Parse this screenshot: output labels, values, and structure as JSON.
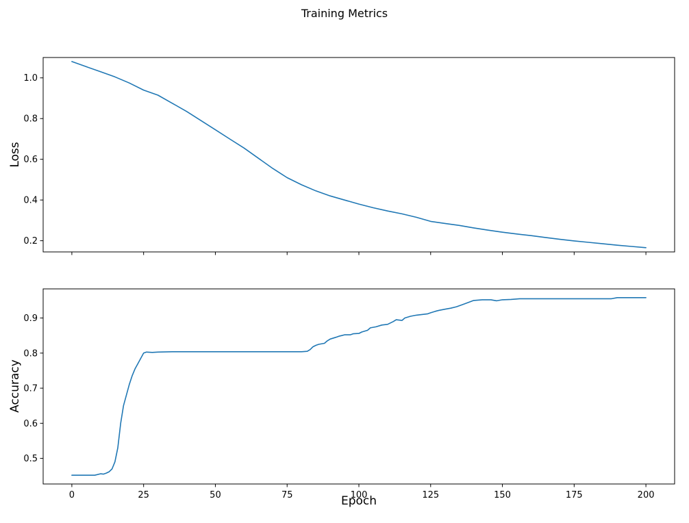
{
  "figure": {
    "title": "Training Metrics",
    "background_color": "#ffffff",
    "line_color": "#1f77b4"
  },
  "chart_data": [
    {
      "type": "line",
      "title": "",
      "xlabel": "",
      "ylabel": "Loss",
      "legend": "none",
      "grid": false,
      "color": "#1f77b4",
      "xlim": [
        -10,
        210
      ],
      "ylim": [
        0.145,
        1.1
      ],
      "xticks": [
        0,
        25,
        50,
        75,
        100,
        125,
        150,
        175,
        200
      ],
      "yticks": [
        0.2,
        0.4,
        0.6,
        0.8,
        1.0
      ],
      "show_x_tick_labels": false,
      "x": [
        0,
        5,
        10,
        15,
        20,
        25,
        30,
        35,
        40,
        45,
        50,
        55,
        60,
        65,
        70,
        75,
        80,
        85,
        90,
        95,
        100,
        105,
        110,
        115,
        120,
        125,
        130,
        135,
        140,
        145,
        150,
        155,
        160,
        165,
        170,
        175,
        180,
        185,
        190,
        195,
        200
      ],
      "y": [
        1.08,
        1.055,
        1.03,
        1.005,
        0.975,
        0.94,
        0.915,
        0.875,
        0.835,
        0.79,
        0.745,
        0.7,
        0.655,
        0.605,
        0.555,
        0.51,
        0.475,
        0.445,
        0.42,
        0.4,
        0.38,
        0.362,
        0.346,
        0.332,
        0.315,
        0.295,
        0.285,
        0.275,
        0.263,
        0.252,
        0.242,
        0.233,
        0.225,
        0.216,
        0.207,
        0.199,
        0.192,
        0.185,
        0.178,
        0.172,
        0.166
      ]
    },
    {
      "type": "line",
      "title": "",
      "xlabel": "Epoch",
      "ylabel": "Accuracy",
      "legend": "none",
      "grid": false,
      "color": "#1f77b4",
      "xlim": [
        -10,
        210
      ],
      "ylim": [
        0.427,
        0.983
      ],
      "xticks": [
        0,
        25,
        50,
        75,
        100,
        125,
        150,
        175,
        200
      ],
      "yticks": [
        0.5,
        0.6,
        0.7,
        0.8,
        0.9
      ],
      "show_x_tick_labels": true,
      "x": [
        0,
        4,
        8,
        10,
        11,
        12,
        13,
        14,
        15,
        16,
        17,
        18,
        19,
        20,
        21,
        22,
        23,
        24,
        25,
        26,
        28,
        30,
        35,
        40,
        50,
        60,
        70,
        80,
        82,
        83,
        84,
        85,
        86,
        88,
        89,
        90,
        92,
        93,
        94,
        95,
        97,
        98,
        100,
        101,
        103,
        104,
        106,
        108,
        110,
        112,
        113,
        115,
        116,
        118,
        120,
        122,
        124,
        125,
        127,
        128,
        130,
        132,
        134,
        136,
        138,
        140,
        143,
        146,
        148,
        150,
        153,
        156,
        158,
        160,
        165,
        170,
        175,
        180,
        185,
        188,
        190,
        195,
        200
      ],
      "y": [
        0.452,
        0.452,
        0.452,
        0.456,
        0.455,
        0.458,
        0.462,
        0.47,
        0.49,
        0.53,
        0.6,
        0.65,
        0.68,
        0.71,
        0.735,
        0.755,
        0.77,
        0.785,
        0.8,
        0.803,
        0.802,
        0.803,
        0.804,
        0.804,
        0.804,
        0.804,
        0.804,
        0.804,
        0.805,
        0.81,
        0.818,
        0.822,
        0.825,
        0.828,
        0.835,
        0.84,
        0.845,
        0.848,
        0.85,
        0.852,
        0.852,
        0.855,
        0.856,
        0.86,
        0.865,
        0.872,
        0.875,
        0.88,
        0.882,
        0.89,
        0.895,
        0.893,
        0.9,
        0.905,
        0.908,
        0.91,
        0.912,
        0.915,
        0.92,
        0.922,
        0.925,
        0.928,
        0.932,
        0.938,
        0.944,
        0.95,
        0.952,
        0.952,
        0.949,
        0.952,
        0.953,
        0.955,
        0.955,
        0.955,
        0.955,
        0.955,
        0.955,
        0.955,
        0.955,
        0.955,
        0.958,
        0.958,
        0.958
      ]
    }
  ]
}
